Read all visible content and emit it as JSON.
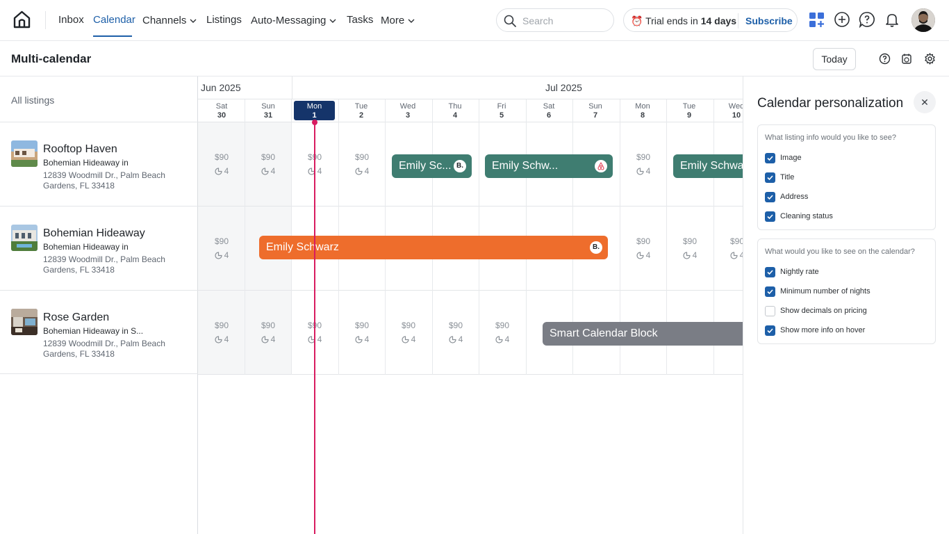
{
  "nav": {
    "items": [
      {
        "label": "Inbox",
        "active": false,
        "dropdown": false
      },
      {
        "label": "Calendar",
        "active": true,
        "dropdown": false
      },
      {
        "label": "Channels",
        "active": false,
        "dropdown": true
      },
      {
        "label": "Listings",
        "active": false,
        "dropdown": false
      },
      {
        "label": "Auto-Messaging",
        "active": false,
        "dropdown": true
      },
      {
        "label": "Tasks",
        "active": false,
        "dropdown": false
      },
      {
        "label": "More",
        "active": false,
        "dropdown": true
      }
    ],
    "search_placeholder": "Search",
    "trial_prefix": "Trial ends in",
    "trial_days": "14 days",
    "subscribe_label": "Subscribe",
    "accent": "#1d5fa8"
  },
  "header": {
    "title": "Multi-calendar",
    "today_label": "Today"
  },
  "listings_header": "All listings",
  "listings": [
    {
      "name": "Rooftop Haven",
      "sub": "Bohemian Hideaway in",
      "address": "12839 Woodmill Dr., Palm Beach Gardens, FL 33418"
    },
    {
      "name": "Bohemian Hideaway",
      "sub": "Bohemian Hideaway in",
      "address": "12839 Woodmill Dr., Palm Beach Gardens, FL 33418"
    },
    {
      "name": "Rose Garden",
      "sub": "Bohemian Hideaway in S...",
      "address": "12839 Woodmill Dr., Palm Beach Gardens, FL 33418"
    }
  ],
  "calendar": {
    "months": [
      "Jun 2025",
      "Jul 2025"
    ],
    "days": [
      {
        "dow": "Sat",
        "num": "30"
      },
      {
        "dow": "Sun",
        "num": "31"
      },
      {
        "dow": "Mon",
        "num": "1"
      },
      {
        "dow": "Tue",
        "num": "2"
      },
      {
        "dow": "Wed",
        "num": "3"
      },
      {
        "dow": "Thu",
        "num": "4"
      },
      {
        "dow": "Fri",
        "num": "5"
      },
      {
        "dow": "Sat",
        "num": "6"
      },
      {
        "dow": "Sun",
        "num": "7"
      },
      {
        "dow": "Mon",
        "num": "8"
      },
      {
        "dow": "Tue",
        "num": "9"
      },
      {
        "dow": "Wed",
        "num": "10"
      }
    ],
    "rate": "$90",
    "min_nights": "4",
    "bookings": {
      "b1": {
        "guest": "Emily Sc...",
        "channel": "B."
      },
      "b2": {
        "guest": "Emily Schw...",
        "channel": "airbnb"
      },
      "b3": {
        "guest": "Emily Schwa"
      },
      "b4": {
        "guest": "Emily Schwarz",
        "channel": "B."
      },
      "b5": {
        "guest": "Smart Calendar Block"
      }
    },
    "colors": {
      "booking_green": "#3f7d71",
      "booking_orange": "#ee6d2c",
      "block_gray": "#7a7d85",
      "today_line": "#d81b60",
      "today_header": "#15346a"
    }
  },
  "panel": {
    "title": "Calendar personalization",
    "section1": {
      "question": "What listing info would you like to see?",
      "options": [
        {
          "label": "Image",
          "checked": true
        },
        {
          "label": "Title",
          "checked": true
        },
        {
          "label": "Address",
          "checked": true
        },
        {
          "label": "Cleaning status",
          "checked": true
        }
      ]
    },
    "section2": {
      "question": "What would you like to see on the calendar?",
      "options": [
        {
          "label": "Nightly rate",
          "checked": true
        },
        {
          "label": "Minimum number of nights",
          "checked": true
        },
        {
          "label": "Show decimals on pricing",
          "checked": false
        },
        {
          "label": "Show more info on hover",
          "checked": true
        }
      ]
    }
  }
}
